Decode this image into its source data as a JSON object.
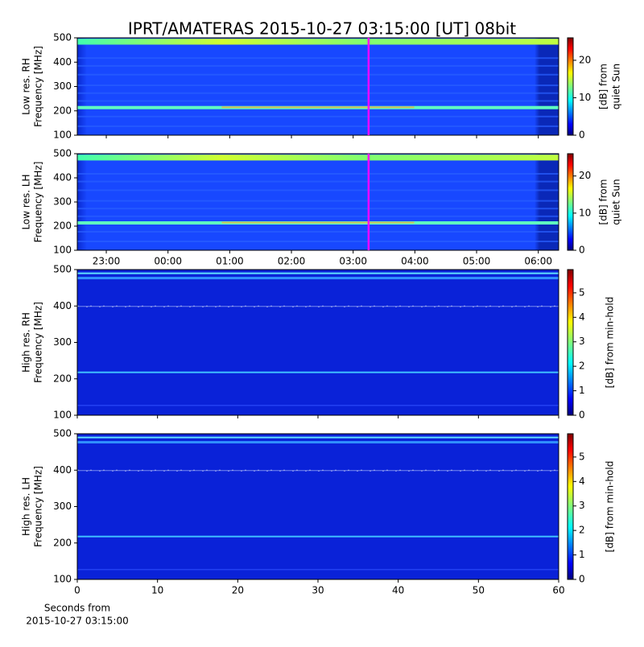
{
  "title": "IPRT/AMATERAS 2015-10-27 03:15:00 [UT]   08bit",
  "chart_data": [
    {
      "type": "heatmap",
      "colormap": "jet",
      "ylabel": [
        "Low res. RH",
        "Frequency [MHz]"
      ],
      "ylim": [
        100,
        500
      ],
      "yticks": [
        100,
        200,
        300,
        400,
        500
      ],
      "xlim": [
        22.53,
        30.33
      ],
      "colorbar_label": [
        "[dB] from",
        "quiet Sun"
      ],
      "clim": [
        0,
        26
      ],
      "cticks": [
        0,
        10,
        20
      ],
      "marker_x": 27.25,
      "marker_color": "#ff00ff",
      "resolution": "low"
    },
    {
      "type": "heatmap",
      "colormap": "jet",
      "ylabel": [
        "Low res. LH",
        "Frequency [MHz]"
      ],
      "ylim": [
        100,
        500
      ],
      "yticks": [
        100,
        200,
        300,
        400,
        500
      ],
      "xlim": [
        22.53,
        30.33
      ],
      "xticks": [
        {
          "value": 23,
          "label": "23:00"
        },
        {
          "value": 24,
          "label": "00:00"
        },
        {
          "value": 25,
          "label": "01:00"
        },
        {
          "value": 26,
          "label": "02:00"
        },
        {
          "value": 27,
          "label": "03:00"
        },
        {
          "value": 28,
          "label": "04:00"
        },
        {
          "value": 29,
          "label": "05:00"
        },
        {
          "value": 30,
          "label": "06:00"
        }
      ],
      "colorbar_label": [
        "[dB] from",
        "quiet Sun"
      ],
      "clim": [
        0,
        26
      ],
      "cticks": [
        0,
        10,
        20
      ],
      "marker_x": 27.25,
      "marker_color": "#ff00ff",
      "resolution": "low"
    },
    {
      "type": "heatmap",
      "colormap": "jet",
      "ylabel": [
        "High res. RH",
        "Frequency [MHz]"
      ],
      "ylim": [
        100,
        500
      ],
      "yticks": [
        100,
        200,
        300,
        400,
        500
      ],
      "xlim": [
        0,
        60
      ],
      "colorbar_label": [
        "[dB] from min-hold"
      ],
      "clim": [
        0,
        5.95
      ],
      "cticks": [
        0,
        1,
        2,
        3,
        4,
        5
      ],
      "resolution": "high"
    },
    {
      "type": "heatmap",
      "colormap": "jet",
      "ylabel": [
        "High res. LH",
        "Frequency [MHz]"
      ],
      "ylim": [
        100,
        500
      ],
      "yticks": [
        100,
        200,
        300,
        400,
        500
      ],
      "xlim": [
        0,
        60
      ],
      "xticks": [
        0,
        10,
        20,
        30,
        40,
        50,
        60
      ],
      "xlabel": [
        "Seconds from",
        "2015-10-27 03:15:00"
      ],
      "colorbar_label": [
        "[dB] from min-hold"
      ],
      "clim": [
        0,
        5.95
      ],
      "cticks": [
        0,
        1,
        2,
        3,
        4,
        5
      ],
      "resolution": "high"
    }
  ]
}
